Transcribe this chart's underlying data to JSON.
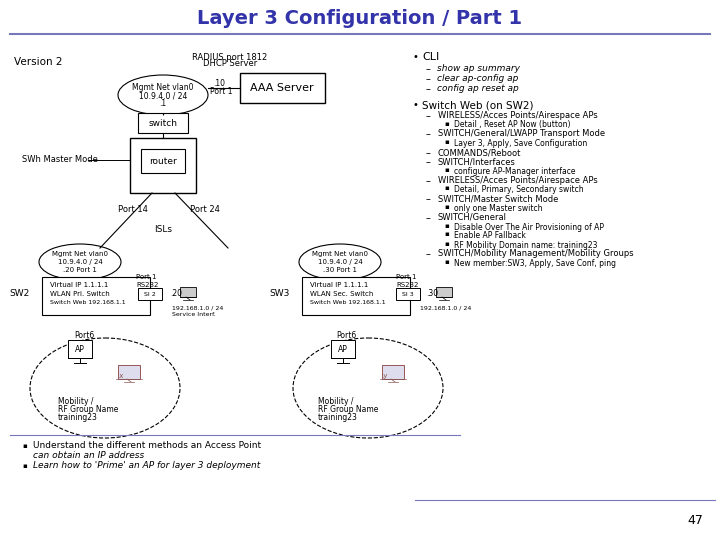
{
  "title": "Layer 3 Configuration / Part 1",
  "title_color": "#3333AA",
  "bg_color": "#FFFFFF",
  "slide_number": "47",
  "version": "Version 2",
  "radius_label": "RADIUS port 1812\nDHCP Server",
  "aaa_server_text": "AAA Server",
  "switch_text": "switch",
  "router_text": "router",
  "swh_master_mode": "SWh Master Mode",
  "port14_text": "Port 14",
  "port24_text": "Port 24",
  "isls_text": "ISLs",
  "sw2_label": "SW2",
  "sw3_label": "SW3",
  "sl2_text": "SI 2",
  "sl3_text": "SI 3",
  "dot20_text": ".20",
  "dot30_text": ".30",
  "port6_left": "Port6",
  "port6_right": "Port6",
  "ap_text": "AP",
  "x_label": ".x",
  "y_label": ".y",
  "right_col_title1": "CLI",
  "right_col_items1": [
    "show ap summary",
    "clear ap-config ap",
    "config ap reset ap"
  ],
  "right_col_title2": "Switch Web (on SW2)",
  "right_col_items2": [
    {
      "level": 1,
      "text": "WIRELESS/Acces Points/Airespace APs"
    },
    {
      "level": 2,
      "text": "Detail , Reset AP Now (button)"
    },
    {
      "level": 1,
      "text": "SWITCH/General/LWAPP Transport Mode"
    },
    {
      "level": 2,
      "text": "Layer 3, Apply, Save Configuration"
    },
    {
      "level": 1,
      "text": "COMMANDS/Reboot"
    },
    {
      "level": 1,
      "text": "SWITCH/Interfaces"
    },
    {
      "level": 2,
      "text": "configure AP-Manager interface"
    },
    {
      "level": 1,
      "text": "WIRELESS/Acces Points/Airespace APs"
    },
    {
      "level": 2,
      "text": "Detail, Primary, Secondary switch"
    },
    {
      "level": 1,
      "text": "SWITCH/Master Switch Mode"
    },
    {
      "level": 2,
      "text": "only one Master switch"
    },
    {
      "level": 1,
      "text": "SWITCH/General"
    },
    {
      "level": 2,
      "text": "Disable Over The Air Provisioning of AP"
    },
    {
      "level": 2,
      "text": "Enable AP Fallback"
    },
    {
      "level": 2,
      "text": "RF Mobility Domain name: training23"
    },
    {
      "level": 1,
      "text": "SWITCH/Mobility Management/Mobility Groups"
    },
    {
      "level": 2,
      "text": "New member:SW3, Apply, Save Conf, ping"
    }
  ]
}
